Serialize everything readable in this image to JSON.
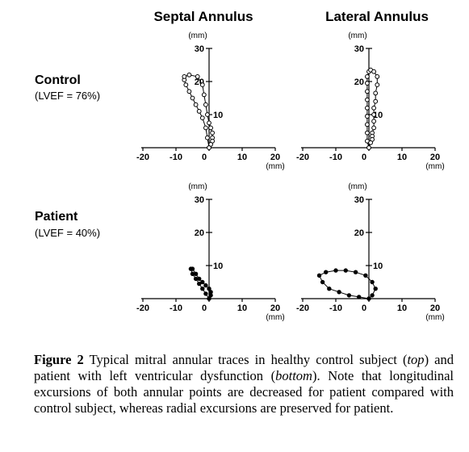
{
  "figure": {
    "column_titles": [
      "Septal Annulus",
      "Lateral Annulus"
    ],
    "rows": [
      {
        "title": "Control",
        "subtitle": "(LVEF = 76%)"
      },
      {
        "title": "Patient",
        "subtitle": "(LVEF = 40%)"
      }
    ],
    "unit_label": "(mm)"
  },
  "caption": {
    "label": "Figure 2",
    "text_1": " Typical mitral annular traces in healthy control subject (",
    "top": "top",
    "text_2": ") and patient with left ventricular dysfunction (",
    "bottom": "bottom",
    "text_3": "). Note that longitudinal excursions of both annular points are decreased for patient compared with control subject, whereas radial excursions are preserved for patient."
  },
  "chart_data": [
    {
      "type": "line",
      "title": "Septal Annulus",
      "row": "Control",
      "xlabel": "(mm)",
      "ylabel": "(mm)",
      "xlim": [
        -20,
        20
      ],
      "ylim": [
        0,
        30
      ],
      "xticks": [
        -20,
        -10,
        0,
        10,
        20
      ],
      "yticks": [
        10,
        20,
        30
      ],
      "marker": "open-circle",
      "x": [
        0,
        -0.5,
        -1.0,
        -2.0,
        -3.0,
        -4.0,
        -5.0,
        -6.0,
        -7.0,
        -7.5,
        -7.5,
        -6.0,
        -3.5,
        -2.0,
        -1.5,
        -1.0,
        -0.5,
        0,
        0.5,
        1.0,
        1.0,
        1.0,
        0.5,
        0
      ],
      "y": [
        0,
        3,
        6,
        9,
        11,
        13,
        15,
        17,
        19,
        20.5,
        21.5,
        22,
        21.5,
        19,
        16,
        13,
        10,
        7.5,
        6,
        4.5,
        3,
        2,
        1,
        0
      ]
    },
    {
      "type": "line",
      "title": "Lateral Annulus",
      "row": "Control",
      "xlabel": "(mm)",
      "ylabel": "(mm)",
      "xlim": [
        -20,
        20
      ],
      "ylim": [
        0,
        30
      ],
      "xticks": [
        -20,
        -10,
        0,
        10,
        20
      ],
      "yticks": [
        10,
        20,
        30
      ],
      "marker": "open-circle",
      "x": [
        0,
        -0.5,
        -0.5,
        -0.5,
        -0.5,
        -0.5,
        -0.5,
        -0.5,
        -0.5,
        -0.5,
        0,
        0.5,
        1.5,
        2.5,
        2.5,
        2.0,
        2.0,
        1.5,
        1.5,
        1.5,
        1.5,
        1.0,
        1.0,
        1.0,
        0.5,
        0
      ],
      "y": [
        0,
        2,
        4.5,
        7,
        9.5,
        12,
        14.5,
        17,
        19.5,
        21.5,
        23,
        23.5,
        23,
        21.5,
        19,
        16.5,
        14,
        12,
        10,
        8,
        6,
        4.5,
        3.5,
        2.5,
        1.5,
        0
      ]
    },
    {
      "type": "line",
      "title": "Septal Annulus",
      "row": "Patient",
      "xlabel": "(mm)",
      "ylabel": "(mm)",
      "xlim": [
        -20,
        20
      ],
      "ylim": [
        0,
        30
      ],
      "xticks": [
        -20,
        -10,
        0,
        10,
        20
      ],
      "yticks": [
        10,
        20,
        30
      ],
      "marker": "filled-circle",
      "x": [
        0,
        -1.0,
        -2.0,
        -3.0,
        -4.0,
        -5.0,
        -5.5,
        -5.0,
        -4.0,
        -3.0,
        -2.0,
        -1.0,
        0,
        0.5,
        0.5,
        0
      ],
      "y": [
        0,
        1.5,
        3,
        4.5,
        6,
        7.5,
        9,
        9,
        7.5,
        6,
        5,
        4,
        3,
        2,
        1,
        0
      ]
    },
    {
      "type": "line",
      "title": "Lateral Annulus",
      "row": "Patient",
      "xlabel": "(mm)",
      "ylabel": "(mm)",
      "xlim": [
        -20,
        20
      ],
      "ylim": [
        0,
        30
      ],
      "xticks": [
        -20,
        -10,
        0,
        10,
        20
      ],
      "yticks": [
        10,
        20,
        30
      ],
      "marker": "filled-circle",
      "x": [
        0,
        -3.0,
        -6.0,
        -9.0,
        -12.0,
        -14.0,
        -15.0,
        -13.0,
        -10.0,
        -7.0,
        -4.0,
        -1.0,
        1.0,
        2.0,
        1.0,
        0
      ],
      "y": [
        0,
        0.5,
        1.0,
        2.0,
        3.0,
        5.0,
        7.0,
        8.0,
        8.5,
        8.5,
        8.0,
        7.0,
        5.0,
        3.0,
        1.0,
        0
      ]
    }
  ]
}
